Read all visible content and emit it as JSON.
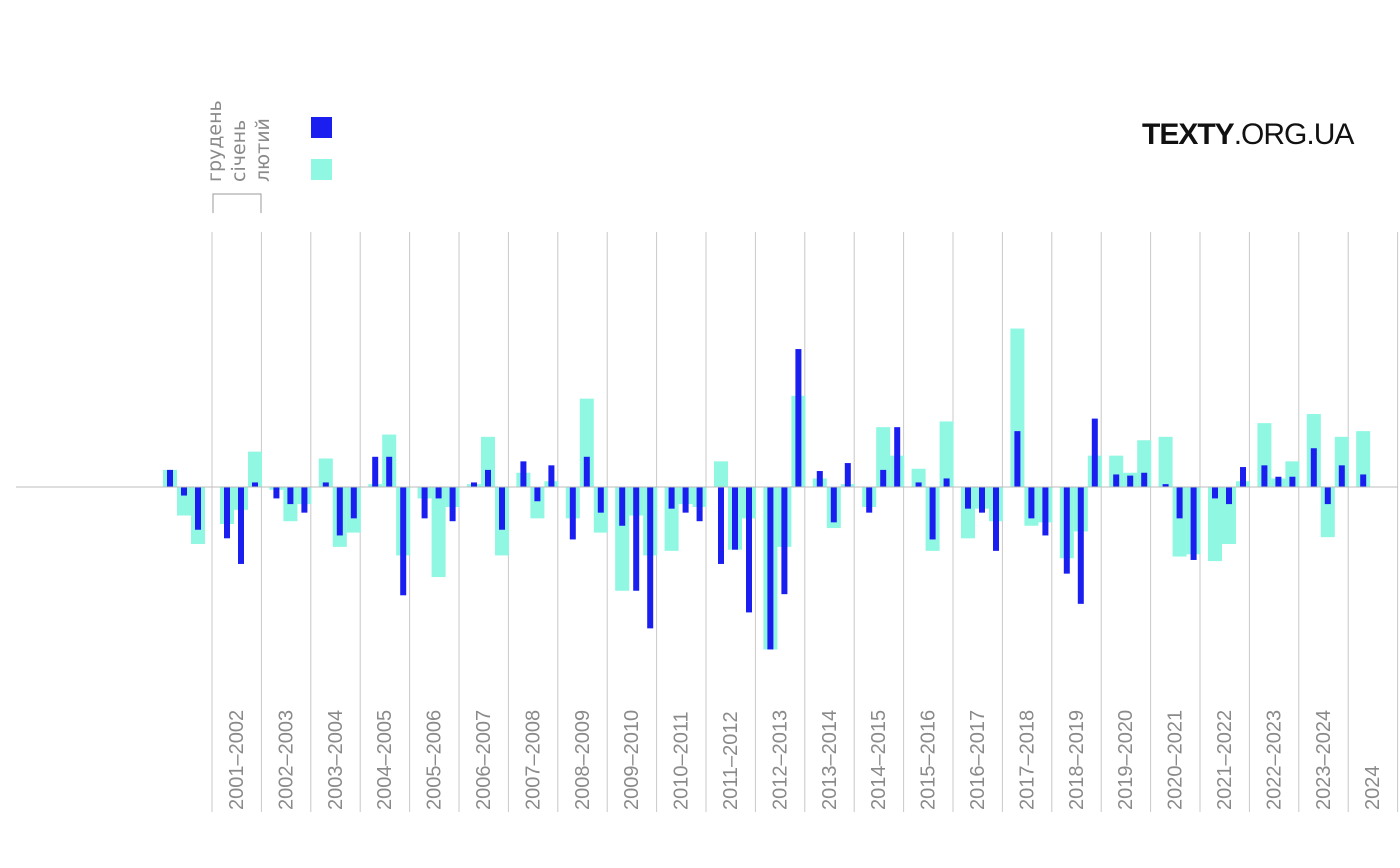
{
  "brand": {
    "bold": "TEXTY",
    "light": ".ORG.UA"
  },
  "legend": {
    "months": [
      "грудень",
      "січень",
      "лютий"
    ],
    "swatches": [
      {
        "name": "dark",
        "color": "#1a1ff0"
      },
      {
        "name": "light",
        "color": "#8ff7e2"
      }
    ]
  },
  "chart_data": {
    "type": "bar",
    "title": "",
    "xlabel": "",
    "ylabel": "",
    "ylim": [
      -2.7,
      3.0
    ],
    "colors": {
      "dark": "#1a1ff0",
      "light": "#8ff7e2",
      "grid": "#c8c8c8",
      "zero": "#bdbdbd"
    },
    "series_names": [
      "грудень",
      "січень",
      "лютий"
    ],
    "categories": [
      "2001–2002",
      "2002–2003",
      "2003–2004",
      "2004–2005",
      "2005–2006",
      "2006–2007",
      "2007–2008",
      "2008–2009",
      "2009–2010",
      "2010–2011",
      "2011–2012",
      "2012–2013",
      "2013–2014",
      "2014–2015",
      "2015–2016",
      "2016–2017",
      "2017–2018",
      "2018–2019",
      "2019–2020",
      "2020–2021",
      "2021–2022",
      "2022–2023",
      "2023–2024",
      "2024"
    ],
    "lead_bars": [
      {
        "dark": 0.3,
        "light": 0.3
      },
      {
        "dark": -0.15,
        "light": -0.5
      },
      {
        "dark": -0.75,
        "light": -1.0
      }
    ],
    "bars": [
      [
        {
          "dark": -0.9,
          "light": -0.65
        },
        {
          "dark": -1.35,
          "light": -0.4
        },
        {
          "dark": 0.08,
          "light": 0.62
        }
      ],
      [
        {
          "dark": -0.2,
          "light": -0.05
        },
        {
          "dark": -0.3,
          "light": -0.6
        },
        {
          "dark": -0.45,
          "light": -0.3
        }
      ],
      [
        {
          "dark": 0.08,
          "light": 0.5
        },
        {
          "dark": -0.85,
          "light": -1.05
        },
        {
          "dark": -0.55,
          "light": -0.8
        }
      ],
      [
        {
          "dark": 0.53,
          "light": 0.05
        },
        {
          "dark": 0.53,
          "light": 0.92
        },
        {
          "dark": -1.9,
          "light": -1.2
        }
      ],
      [
        {
          "dark": -0.55,
          "light": -0.2
        },
        {
          "dark": -0.2,
          "light": -1.58
        },
        {
          "dark": -0.6,
          "light": -0.35
        }
      ],
      [
        {
          "dark": 0.08,
          "light": 0.05
        },
        {
          "dark": 0.3,
          "light": 0.88
        },
        {
          "dark": -0.75,
          "light": -1.2
        }
      ],
      [
        {
          "dark": 0.45,
          "light": 0.25
        },
        {
          "dark": -0.25,
          "light": -0.55
        },
        {
          "dark": 0.38,
          "light": 0.1
        }
      ],
      [
        {
          "dark": -0.92,
          "light": -0.55
        },
        {
          "dark": 0.53,
          "light": 1.55
        },
        {
          "dark": -0.45,
          "light": -0.8
        }
      ],
      [
        {
          "dark": -0.68,
          "light": -1.82
        },
        {
          "dark": -1.82,
          "light": -0.5
        },
        {
          "dark": -2.48,
          "light": -1.2
        }
      ],
      [
        {
          "dark": -0.38,
          "light": -1.12
        },
        {
          "dark": -0.45,
          "light": -0.3
        },
        {
          "dark": -0.6,
          "light": -0.35
        }
      ],
      [
        {
          "dark": -1.35,
          "light": 0.45
        },
        {
          "dark": -1.1,
          "light": -1.1
        },
        {
          "dark": -2.2,
          "light": -0.55
        }
      ],
      [
        {
          "dark": -2.85,
          "light": -2.85
        },
        {
          "dark": -1.88,
          "light": -1.05
        },
        {
          "dark": 2.42,
          "light": 1.6
        }
      ],
      [
        {
          "dark": 0.28,
          "light": 0.15
        },
        {
          "dark": -0.62,
          "light": -0.72
        },
        {
          "dark": 0.42,
          "light": 0.05
        }
      ],
      [
        {
          "dark": -0.45,
          "light": -0.35
        },
        {
          "dark": 0.3,
          "light": 1.05
        },
        {
          "dark": 1.05,
          "light": 0.55
        }
      ],
      [
        {
          "dark": 0.08,
          "light": 0.32
        },
        {
          "dark": -0.92,
          "light": -1.12
        },
        {
          "dark": 0.15,
          "light": 1.15
        }
      ],
      [
        {
          "dark": -0.38,
          "light": -0.9
        },
        {
          "dark": -0.45,
          "light": -0.38
        },
        {
          "dark": -1.12,
          "light": -0.6
        }
      ],
      [
        {
          "dark": 0.98,
          "light": 2.78
        },
        {
          "dark": -0.55,
          "light": -0.68
        },
        {
          "dark": -0.85,
          "light": -0.62
        }
      ],
      [
        {
          "dark": -1.52,
          "light": -1.25
        },
        {
          "dark": -2.05,
          "light": -0.78
        },
        {
          "dark": 1.2,
          "light": 0.55
        }
      ],
      [
        {
          "dark": 0.22,
          "light": 0.55
        },
        {
          "dark": 0.2,
          "light": 0.25
        },
        {
          "dark": 0.25,
          "light": 0.82
        }
      ],
      [
        {
          "dark": 0.05,
          "light": 0.88
        },
        {
          "dark": -0.55,
          "light": -1.22
        },
        {
          "dark": -1.28,
          "light": -1.18
        }
      ],
      [
        {
          "dark": -0.2,
          "light": -1.3
        },
        {
          "dark": -0.3,
          "light": -1.0
        },
        {
          "dark": 0.35,
          "light": 0.1
        }
      ],
      [
        {
          "dark": 0.38,
          "light": 1.12
        },
        {
          "dark": 0.18,
          "light": 0.15
        },
        {
          "dark": 0.18,
          "light": 0.45
        }
      ],
      [
        {
          "dark": 0.68,
          "light": 1.28
        },
        {
          "dark": -0.3,
          "light": -0.88
        },
        {
          "dark": 0.38,
          "light": 0.88
        }
      ],
      [
        {
          "dark": 0.22,
          "light": 0.98
        }
      ]
    ]
  }
}
